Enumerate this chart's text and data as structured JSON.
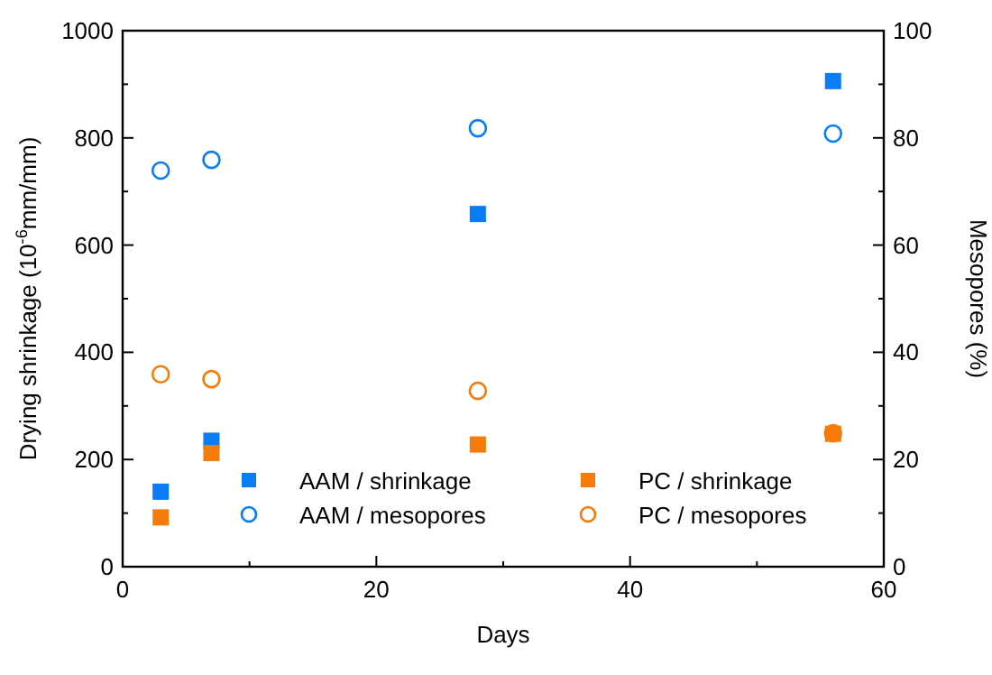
{
  "chart_data": {
    "type": "scatter",
    "xlabel": "Days",
    "ylabel": "Drying shrinkage (10$^{-6}$mm/mm)",
    "y2label": "Mesopores (%)",
    "xlim": [
      0,
      60
    ],
    "xticks": [
      0,
      {
        "value": 10,
        "label": null
      },
      20,
      {
        "value": 30,
        "label": null
      },
      40,
      {
        "value": 50,
        "label": null
      },
      60
    ],
    "ylim": [
      0,
      1000
    ],
    "yticks": [
      0,
      {
        "value": 100,
        "label": null
      },
      200,
      {
        "value": 300,
        "label": null
      },
      400,
      {
        "value": 500,
        "label": null
      },
      600,
      {
        "value": 700,
        "label": null
      },
      800,
      {
        "value": 900,
        "label": null
      },
      1000
    ],
    "y2lim": [
      0,
      100
    ],
    "y2ticks": [
      0,
      {
        "value": 10,
        "label": null
      },
      20,
      {
        "value": 30,
        "label": null
      },
      40,
      {
        "value": 50,
        "label": null
      },
      60,
      {
        "value": 70,
        "label": null
      },
      80,
      {
        "value": 90,
        "label": null
      },
      100
    ],
    "legend": "bottom right",
    "x": [
      3,
      7,
      28,
      56
    ],
    "series": [
      {
        "name": "AAM / shrinkage",
        "color": "#0a7cf5",
        "marker": "square",
        "values": [
          140,
          235,
          658,
          906
        ]
      },
      {
        "name": "PC / shrinkage",
        "color": "#f57c0a",
        "marker": "square",
        "values": [
          92,
          212,
          228,
          248
        ]
      },
      {
        "name": "AAM / mesopores",
        "color": "#0a7cf5",
        "marker": "circle",
        "axis": "y2",
        "values": [
          73.9,
          75.9,
          81.8,
          80.8
        ]
      },
      {
        "name": "PC / mesopores",
        "color": "#f57c0a",
        "marker": "circle",
        "axis": "y2",
        "values": [
          35.9,
          35.0,
          32.8,
          24.9
        ]
      }
    ]
  }
}
